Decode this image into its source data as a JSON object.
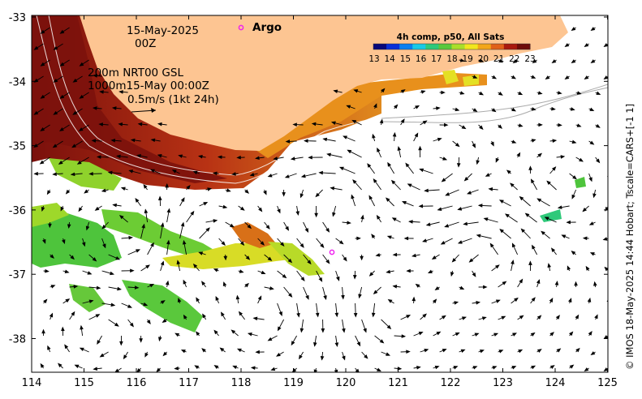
{
  "map": {
    "date": "15-May-2025",
    "time": "00Z",
    "bathy_line1": "200m NRT00 GSL",
    "bathy_line2": "1000m15-May 00:00Z",
    "scale_label": "0.5m/s (1kt 24h)",
    "argo_label": "Argo",
    "colorbar_title": "4h comp, p50, All Sats",
    "colorbar_ticks": [
      "13",
      "14",
      "15",
      "16",
      "17",
      "18",
      "19",
      "20",
      "21",
      "22",
      "23"
    ],
    "colorbar_colors": [
      "#08087a",
      "#0a2fd8",
      "#0a7ff0",
      "#19c9e6",
      "#2fc97a",
      "#5ac83c",
      "#aade2a",
      "#f2e61e",
      "#f3a619",
      "#e0601a",
      "#a9190f",
      "#6e0c0a"
    ],
    "x_ticks": [
      "114",
      "115",
      "116",
      "117",
      "118",
      "119",
      "120",
      "121",
      "122",
      "123",
      "124",
      "125"
    ],
    "y_ticks": [
      "-33",
      "-34",
      "-35",
      "-36",
      "-37",
      "-38"
    ],
    "credit": "© IMOS 18-May-2025 14:44 Hobart; Tscale=CARS+[-1 1]",
    "land_color": "#fdc592",
    "argo_color": "#ee22ee",
    "sst_colors": {
      "warm_dark": "#8a1a10",
      "warm": "#b03a14",
      "mid": "#d8661a",
      "orange": "#e8901c",
      "yellow": "#dede26",
      "green": "#4ec43c",
      "lime": "#9ed82a"
    }
  }
}
